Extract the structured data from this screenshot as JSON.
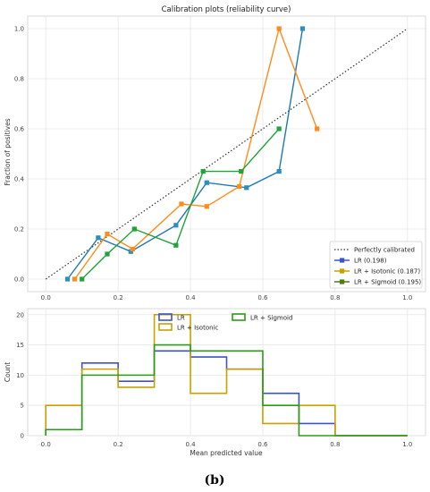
{
  "caption": "(b)",
  "colors": {
    "lr": "#1f77b4",
    "lr_marker": "#2a8fbf",
    "isotonic": "#ff8c1a",
    "sigmoid": "#1fa33a",
    "diagonal": "#333333",
    "hist_lr": "#3b55c6",
    "hist_iso": "#c8a000",
    "hist_sig": "#2a9d18"
  },
  "chart_data": [
    {
      "type": "line",
      "title": "Calibration plots  (reliability curve)",
      "xlabel": "",
      "ylabel": "Fraction of positives",
      "xlim": [
        -0.05,
        1.05
      ],
      "ylim": [
        -0.05,
        1.05
      ],
      "xticks": [
        "0.0",
        "0.2",
        "0.4",
        "0.6",
        "0.8",
        "1.0"
      ],
      "yticks": [
        "0.0",
        "0.2",
        "0.4",
        "0.6",
        "0.8",
        "1.0"
      ],
      "grid": true,
      "legend_position": "bottom-right",
      "diagonal": {
        "name": "Perfectly calibrated",
        "x": [
          0,
          1
        ],
        "y": [
          0,
          1
        ]
      },
      "series": [
        {
          "name": "LR (0.198)",
          "x": [
            0.06,
            0.145,
            0.235,
            0.36,
            0.445,
            0.555,
            0.645,
            0.71
          ],
          "y": [
            0.0,
            0.165,
            0.11,
            0.215,
            0.385,
            0.365,
            0.43,
            1.0
          ]
        },
        {
          "name": "LR + Isotonic (0.187)",
          "x": [
            0.08,
            0.17,
            0.24,
            0.375,
            0.445,
            0.535,
            0.645,
            0.75
          ],
          "y": [
            0.0,
            0.18,
            0.12,
            0.3,
            0.29,
            0.37,
            1.0,
            0.6
          ]
        },
        {
          "name": "LR + Sigmoid (0.195)",
          "x": [
            0.1,
            0.17,
            0.245,
            0.36,
            0.435,
            0.54,
            0.645
          ],
          "y": [
            0.0,
            0.1,
            0.2,
            0.135,
            0.43,
            0.43,
            0.6
          ]
        }
      ]
    },
    {
      "type": "bar",
      "title": "",
      "xlabel": "Mean predicted value",
      "ylabel": "Count",
      "xlim": [
        -0.05,
        1.05
      ],
      "ylim": [
        0,
        21
      ],
      "xticks": [
        "0.0",
        "0.2",
        "0.4",
        "0.6",
        "0.8",
        "1.0"
      ],
      "yticks": [
        "0",
        "5",
        "10",
        "15",
        "20"
      ],
      "grid": true,
      "legend_position": "top-center",
      "bin_edges": [
        0.0,
        0.1,
        0.2,
        0.3,
        0.4,
        0.5,
        0.6,
        0.7,
        0.8,
        0.9,
        1.0
      ],
      "series": [
        {
          "name": "LR",
          "values": [
            1,
            12,
            9,
            14,
            13,
            11,
            7,
            2,
            0,
            0
          ]
        },
        {
          "name": "LR + Isotonic",
          "values": [
            5,
            11,
            8,
            20,
            7,
            11,
            2,
            5,
            0,
            0
          ]
        },
        {
          "name": "LR + Sigmoid",
          "values": [
            1,
            10,
            10,
            15,
            14,
            14,
            5,
            0,
            0,
            0
          ]
        }
      ]
    }
  ]
}
